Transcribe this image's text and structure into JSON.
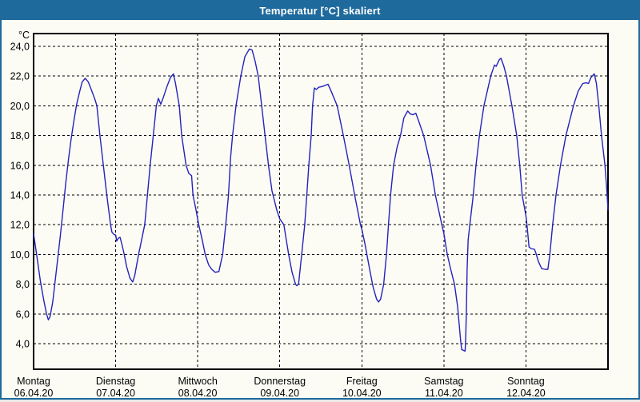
{
  "window": {
    "title": "Temperatur [°C] skaliert"
  },
  "colors": {
    "titlebar_bg": "#1e6a9c",
    "window_bg": "#fcfcf5",
    "line": "#2323bd",
    "grid": "#000000",
    "text": "#000000"
  },
  "chart_data": {
    "type": "line",
    "title": "Temperatur [°C] skaliert",
    "y_unit_label": "°C",
    "ylabel": "Temperatur [°C]",
    "ylim": [
      2.3,
      24.9
    ],
    "x_range_hours": [
      0,
      168
    ],
    "grid": "dashed",
    "legend": "none",
    "ytick_values": [
      24,
      22,
      20,
      18,
      16,
      14,
      12,
      10,
      8,
      6,
      4
    ],
    "ytick_labels": [
      "24,0",
      "22,0",
      "20,0",
      "18,0",
      "16,0",
      "14,0",
      "12,0",
      "10,0",
      "8,0",
      "6,0",
      "4,0"
    ],
    "x_days": [
      {
        "name": "Montag",
        "date": "06.04.20"
      },
      {
        "name": "Dienstag",
        "date": "07.04.20"
      },
      {
        "name": "Mittwoch",
        "date": "08.04.20"
      },
      {
        "name": "Donnerstag",
        "date": "09.04.20"
      },
      {
        "name": "Freitag",
        "date": "10.04.20"
      },
      {
        "name": "Samstag",
        "date": "11.04.20"
      },
      {
        "name": "Sonntag",
        "date": "12.04.20"
      }
    ],
    "series": [
      {
        "name": "Temperatur",
        "points_t_hours_temp_c": [
          [
            0,
            11.4
          ],
          [
            1,
            9.8
          ],
          [
            2,
            8.2
          ],
          [
            3,
            6.9
          ],
          [
            3.8,
            6.0
          ],
          [
            4.3,
            5.6
          ],
          [
            4.8,
            5.8
          ],
          [
            5.6,
            6.8
          ],
          [
            6.3,
            8.2
          ],
          [
            7,
            9.6
          ],
          [
            7.8,
            11.2
          ],
          [
            8.6,
            13.0
          ],
          [
            9.4,
            14.8
          ],
          [
            10.2,
            16.4
          ],
          [
            11,
            17.8
          ],
          [
            11.8,
            19.0
          ],
          [
            12.6,
            20.1
          ],
          [
            13.4,
            20.9
          ],
          [
            14.2,
            21.6
          ],
          [
            15.1,
            21.85
          ],
          [
            16,
            21.6
          ],
          [
            17,
            21.0
          ],
          [
            18,
            20.4
          ],
          [
            18.5,
            20.0
          ],
          [
            19.4,
            18.0
          ],
          [
            20.4,
            16.0
          ],
          [
            21.4,
            14.0
          ],
          [
            22.5,
            12.0
          ],
          [
            22.9,
            11.5
          ],
          [
            23.5,
            11.35
          ],
          [
            24,
            11.3
          ],
          [
            24.3,
            10.9
          ],
          [
            24.8,
            11.1
          ],
          [
            25.3,
            11.15
          ],
          [
            25.8,
            10.7
          ],
          [
            26.5,
            10.0
          ],
          [
            27.2,
            9.2
          ],
          [
            28.2,
            8.4
          ],
          [
            29,
            8.15
          ],
          [
            29.6,
            8.6
          ],
          [
            30.7,
            10.0
          ],
          [
            31.6,
            11.0
          ],
          [
            32.5,
            12.0
          ],
          [
            33.3,
            14.0
          ],
          [
            34.1,
            16.0
          ],
          [
            35,
            18.0
          ],
          [
            35.9,
            20.0
          ],
          [
            36.5,
            20.5
          ],
          [
            37.2,
            20.1
          ],
          [
            38,
            20.6
          ],
          [
            39,
            21.3
          ],
          [
            40,
            21.9
          ],
          [
            40.9,
            22.15
          ],
          [
            41.5,
            21.5
          ],
          [
            42.6,
            20.0
          ],
          [
            43.3,
            18.0
          ],
          [
            44.6,
            16.0
          ],
          [
            45.4,
            15.45
          ],
          [
            46.2,
            15.3
          ],
          [
            46.6,
            14.0
          ],
          [
            47.5,
            13.0
          ],
          [
            48.3,
            12.0
          ],
          [
            49.3,
            11.0
          ],
          [
            50.2,
            10.0
          ],
          [
            51.2,
            9.3
          ],
          [
            52.1,
            9.0
          ],
          [
            53.1,
            8.8
          ],
          [
            54.2,
            8.85
          ],
          [
            55.3,
            10.0
          ],
          [
            56.2,
            12.0
          ],
          [
            57,
            14.0
          ],
          [
            57.6,
            16.5
          ],
          [
            58.2,
            18.0
          ],
          [
            59.2,
            20.0
          ],
          [
            60.6,
            22.0
          ],
          [
            61.8,
            23.3
          ],
          [
            63.1,
            23.82
          ],
          [
            63.9,
            23.75
          ],
          [
            64.8,
            23.0
          ],
          [
            65.7,
            22.0
          ],
          [
            66.7,
            20.0
          ],
          [
            67.7,
            18.0
          ],
          [
            68.7,
            16.0
          ],
          [
            69.7,
            14.3
          ],
          [
            71.1,
            13.0
          ],
          [
            72,
            12.4
          ],
          [
            73.2,
            12.0
          ],
          [
            74.6,
            10.0
          ],
          [
            75.6,
            8.8
          ],
          [
            76.6,
            8.0
          ],
          [
            77,
            7.9
          ],
          [
            77.5,
            8.0
          ],
          [
            78.4,
            10.0
          ],
          [
            79.3,
            12.0
          ],
          [
            79.9,
            14.0
          ],
          [
            80.5,
            16.0
          ],
          [
            81.2,
            18.0
          ],
          [
            81.6,
            20.0
          ],
          [
            82.1,
            21.2
          ],
          [
            82.7,
            21.1
          ],
          [
            83.4,
            21.25
          ],
          [
            84.5,
            21.3
          ],
          [
            85.5,
            21.4
          ],
          [
            86.1,
            21.45
          ],
          [
            87,
            21.0
          ],
          [
            88.8,
            20.0
          ],
          [
            90.6,
            18.0
          ],
          [
            92.3,
            16.0
          ],
          [
            93.9,
            14.0
          ],
          [
            95.6,
            12.0
          ],
          [
            96,
            11.7
          ],
          [
            97,
            10.6
          ],
          [
            98.2,
            9.1
          ],
          [
            99.3,
            7.8
          ],
          [
            100.3,
            7.0
          ],
          [
            100.9,
            6.8
          ],
          [
            101.5,
            7.0
          ],
          [
            102.4,
            8.0
          ],
          [
            103.2,
            10.0
          ],
          [
            103.8,
            12.0
          ],
          [
            104.4,
            14.0
          ],
          [
            105.3,
            16.0
          ],
          [
            106.3,
            17.2
          ],
          [
            107.3,
            18.0
          ],
          [
            108.3,
            19.2
          ],
          [
            109.4,
            19.65
          ],
          [
            110.2,
            19.45
          ],
          [
            110.9,
            19.4
          ],
          [
            111.8,
            19.5
          ],
          [
            112.6,
            19.0
          ],
          [
            114.1,
            18.0
          ],
          [
            116.1,
            16.0
          ],
          [
            117.5,
            14.0
          ],
          [
            119.4,
            12.0
          ],
          [
            120,
            11.4
          ],
          [
            121,
            10.0
          ],
          [
            122,
            9.0
          ],
          [
            123.1,
            8.0
          ],
          [
            124,
            6.5
          ],
          [
            124.9,
            4.2
          ],
          [
            125.2,
            3.6
          ],
          [
            126.2,
            3.5
          ],
          [
            126.4,
            4.5
          ],
          [
            126.6,
            6.5
          ],
          [
            126.8,
            9.0
          ],
          [
            127.1,
            11.0
          ],
          [
            127.6,
            12.0
          ],
          [
            128.6,
            14.0
          ],
          [
            129.4,
            16.0
          ],
          [
            130.4,
            18.0
          ],
          [
            131.7,
            20.0
          ],
          [
            133.7,
            22.0
          ],
          [
            134.8,
            22.75
          ],
          [
            135.3,
            22.65
          ],
          [
            136.2,
            23.1
          ],
          [
            136.7,
            23.2
          ],
          [
            137.5,
            22.7
          ],
          [
            138.3,
            22.0
          ],
          [
            139.9,
            20.0
          ],
          [
            141.3,
            18.0
          ],
          [
            142.2,
            16.0
          ],
          [
            142.9,
            14.0
          ],
          [
            144,
            12.6
          ],
          [
            144.3,
            12.0
          ],
          [
            144.9,
            10.5
          ],
          [
            145.5,
            10.4
          ],
          [
            146.5,
            10.35
          ],
          [
            146.9,
            10.1
          ],
          [
            147.7,
            9.5
          ],
          [
            148.6,
            9.05
          ],
          [
            149.6,
            9.0
          ],
          [
            150.4,
            9.0
          ],
          [
            151,
            10.0
          ],
          [
            151.8,
            12.0
          ],
          [
            152.8,
            14.0
          ],
          [
            154.1,
            16.0
          ],
          [
            155.7,
            18.0
          ],
          [
            157.9,
            20.0
          ],
          [
            159.3,
            21.0
          ],
          [
            160.6,
            21.5
          ],
          [
            161.6,
            21.55
          ],
          [
            162.3,
            21.5
          ],
          [
            163,
            21.9
          ],
          [
            164,
            22.15
          ],
          [
            164.6,
            21.5
          ],
          [
            165.3,
            20.0
          ],
          [
            166.1,
            18.0
          ],
          [
            167.1,
            16.0
          ],
          [
            167.6,
            14.5
          ],
          [
            168,
            13.0
          ]
        ]
      }
    ]
  }
}
